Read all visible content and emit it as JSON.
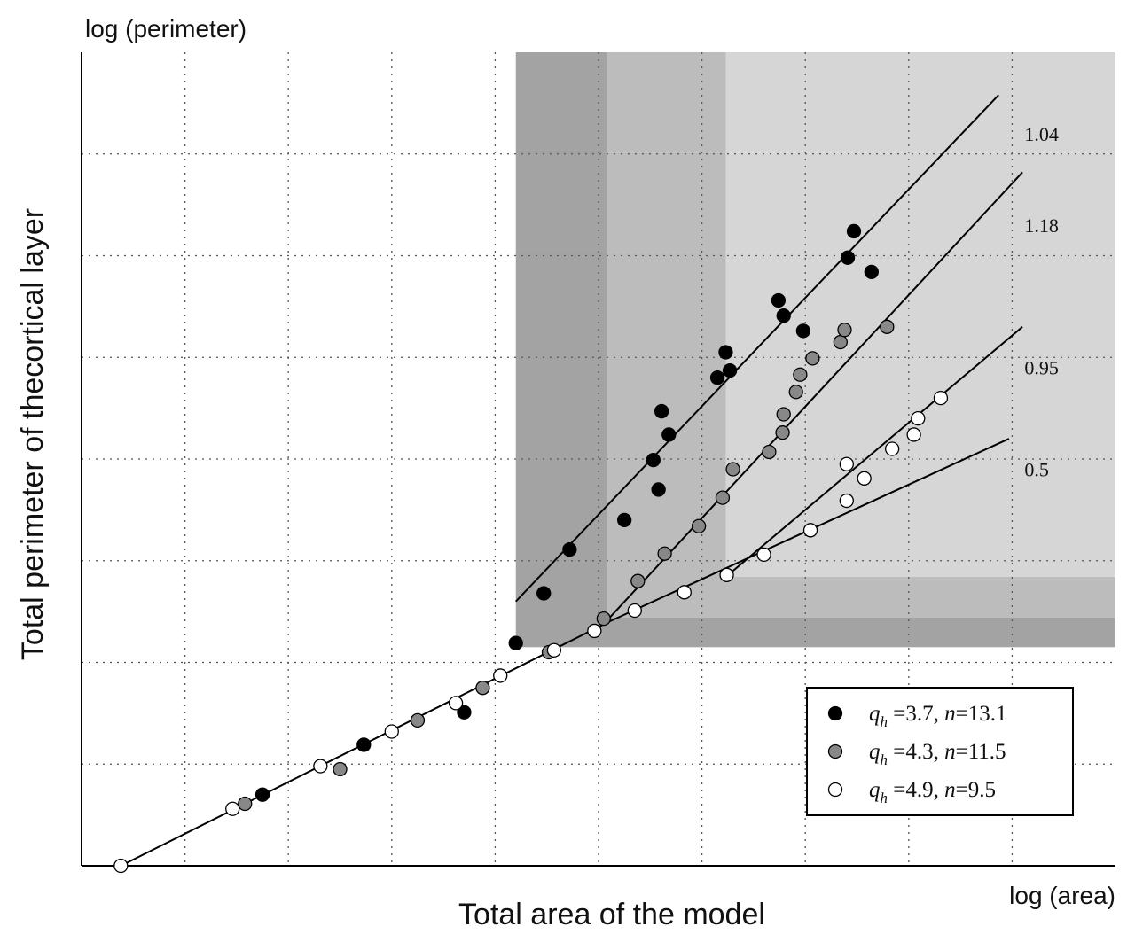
{
  "chart_data": {
    "type": "scatter",
    "top_label": "log (perimeter)",
    "x_unit_label": "log (area)",
    "xlabel": "Total area of the model",
    "ylabel": "Total perimeter of thecortical layer",
    "xlim": [
      0,
      10
    ],
    "ylim": [
      0,
      8
    ],
    "grid": true,
    "gridlines_x": [
      1,
      2,
      3,
      4,
      5,
      6,
      7,
      8,
      9
    ],
    "gridlines_y": [
      1,
      2,
      3,
      4,
      5,
      6,
      7
    ],
    "regions": [
      {
        "x": [
          4.2,
          10
        ],
        "y": [
          2.15,
          8
        ],
        "shade": "#a3a3a3"
      },
      {
        "x": [
          5.08,
          10
        ],
        "y": [
          2.44,
          8
        ],
        "shade": "#bcbcbc"
      },
      {
        "x": [
          6.23,
          10
        ],
        "y": [
          2.84,
          8
        ],
        "shade": "#d6d6d6"
      }
    ],
    "fit_lines": [
      {
        "label": "",
        "x": [
          0.38,
          5.1
        ],
        "y": [
          0.0,
          2.4
        ]
      },
      {
        "label": "",
        "x": [
          5.1,
          8.97
        ],
        "y": [
          2.4,
          4.2
        ]
      },
      {
        "label": "1.04",
        "x": [
          4.2,
          8.87
        ],
        "y": [
          2.6,
          7.58
        ]
      },
      {
        "label": "1.18",
        "x": [
          5.08,
          9.1
        ],
        "y": [
          2.41,
          6.82
        ]
      },
      {
        "label": "0.95",
        "x": [
          6.23,
          9.1
        ],
        "y": [
          2.84,
          5.3
        ]
      }
    ],
    "slope_labels": [
      {
        "text": "1.04",
        "x": 9.0,
        "y": 7.2
      },
      {
        "text": "1.18",
        "x": 9.0,
        "y": 6.3
      },
      {
        "text": "0.95",
        "x": 9.0,
        "y": 4.9
      },
      {
        "text": "0.5",
        "x": 9.0,
        "y": 3.9
      }
    ],
    "series": [
      {
        "name": "qh=3.7, n=13.1",
        "q_label": "3.7",
        "n_label": "13.1",
        "fill": "#000000",
        "points": [
          [
            1.75,
            0.7
          ],
          [
            2.73,
            1.19
          ],
          [
            3.7,
            1.51
          ],
          [
            4.2,
            2.19
          ],
          [
            4.47,
            2.68
          ],
          [
            4.72,
            3.11
          ],
          [
            5.25,
            3.4
          ],
          [
            5.58,
            3.7
          ],
          [
            5.53,
            3.99
          ],
          [
            5.68,
            4.24
          ],
          [
            5.61,
            4.47
          ],
          [
            6.15,
            4.8
          ],
          [
            6.23,
            5.05
          ],
          [
            6.27,
            4.87
          ],
          [
            6.74,
            5.56
          ],
          [
            6.79,
            5.41
          ],
          [
            6.98,
            5.26
          ],
          [
            7.41,
            5.98
          ],
          [
            7.47,
            6.24
          ],
          [
            7.64,
            5.84
          ]
        ]
      },
      {
        "name": "qh=4.3, n=11.5",
        "q_label": "4.3",
        "n_label": "11.5",
        "fill": "#888888",
        "points": [
          [
            1.58,
            0.61
          ],
          [
            2.5,
            0.95
          ],
          [
            3.25,
            1.43
          ],
          [
            3.88,
            1.75
          ],
          [
            4.52,
            2.1
          ],
          [
            5.05,
            2.43
          ],
          [
            5.38,
            2.8
          ],
          [
            5.64,
            3.07
          ],
          [
            5.97,
            3.34
          ],
          [
            6.2,
            3.62
          ],
          [
            6.3,
            3.9
          ],
          [
            6.65,
            4.07
          ],
          [
            6.78,
            4.26
          ],
          [
            6.79,
            4.44
          ],
          [
            6.91,
            4.66
          ],
          [
            6.95,
            4.83
          ],
          [
            7.07,
            4.99
          ],
          [
            7.34,
            5.15
          ],
          [
            7.38,
            5.27
          ],
          [
            7.79,
            5.3
          ]
        ]
      },
      {
        "name": "qh=4.9, n=9.5",
        "q_label": "4.9",
        "n_label": "9.5",
        "fill": "#ffffff",
        "points": [
          [
            0.38,
            0.0
          ],
          [
            1.46,
            0.56
          ],
          [
            2.31,
            0.98
          ],
          [
            3.0,
            1.32
          ],
          [
            3.62,
            1.6
          ],
          [
            4.05,
            1.87
          ],
          [
            4.57,
            2.12
          ],
          [
            4.96,
            2.31
          ],
          [
            5.35,
            2.51
          ],
          [
            5.83,
            2.69
          ],
          [
            6.24,
            2.86
          ],
          [
            6.6,
            3.06
          ],
          [
            7.05,
            3.3
          ],
          [
            7.4,
            3.59
          ],
          [
            7.57,
            3.81
          ],
          [
            7.84,
            4.1
          ],
          [
            8.05,
            4.24
          ],
          [
            7.4,
            3.95
          ],
          [
            8.09,
            4.4
          ],
          [
            8.31,
            4.6
          ]
        ]
      }
    ]
  }
}
